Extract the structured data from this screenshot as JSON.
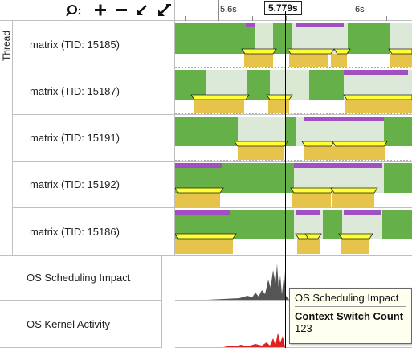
{
  "toolbar": {
    "search_icon": "search-icon",
    "zoom_in_icon": "plus-icon",
    "zoom_out_icon": "minus-icon",
    "arrow_icon": "arrow-down-left-icon",
    "arrow2_icon": "arrow-down-left-double-icon"
  },
  "time_axis": {
    "ticks": [
      "5.6s",
      "6s"
    ],
    "cursor_time": "5.779s"
  },
  "group_label": "Thread",
  "threads": [
    {
      "label": "matrix (TID: 15185)"
    },
    {
      "label": "matrix (TID: 15187)"
    },
    {
      "label": "matrix (TID: 15191)"
    },
    {
      "label": "matrix (TID: 15192)"
    },
    {
      "label": "matrix (TID: 15186)"
    }
  ],
  "counters": [
    {
      "label": "OS Scheduling Impact",
      "color": "#555555"
    },
    {
      "label": "OS Kernel Activity",
      "color": "#dd2222"
    }
  ],
  "colors": {
    "running": "#66b04a",
    "waiting": "#e6c34a",
    "highlight": "#ffff33",
    "sync": "#a050c0"
  },
  "tooltip": {
    "title": "OS Scheduling Impact",
    "name": "Context Switch Count",
    "value": "123"
  }
}
